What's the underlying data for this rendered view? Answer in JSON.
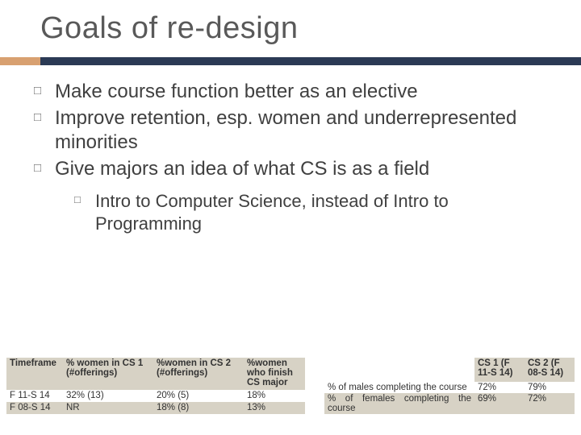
{
  "colors": {
    "title": "#595959",
    "body_text": "#404040",
    "alt_row_bg": "#d7d2c5",
    "divider_accent": "#d8a070",
    "divider_main": "#2b3a55",
    "background": "#ffffff"
  },
  "title": "Goals of re-design",
  "bullets": [
    "Make course function better as an elective",
    "Improve retention, esp. women and underrepresented minorities",
    "Give majors an idea of what CS is as a field"
  ],
  "sub_bullet": "Intro to Computer Science, instead of Intro to Programming",
  "table1": {
    "headers": [
      "Timeframe",
      "% women in CS 1 (#offerings)",
      "%women in CS 2 (#offerings)",
      "%women who finish CS major"
    ],
    "rows": [
      [
        "F 11-S 14",
        "32% (13)",
        "20% (5)",
        "18%"
      ],
      [
        "F 08-S 14",
        "NR",
        "18% (8)",
        "13%"
      ]
    ]
  },
  "table2": {
    "headers": [
      "",
      "CS 1 (F 11-S 14)",
      "CS 2 (F 08-S 14)"
    ],
    "rows": [
      [
        "% of males completing the course",
        "72%",
        "79%"
      ],
      [
        "% of females completing the course",
        "69%",
        "72%"
      ]
    ]
  }
}
